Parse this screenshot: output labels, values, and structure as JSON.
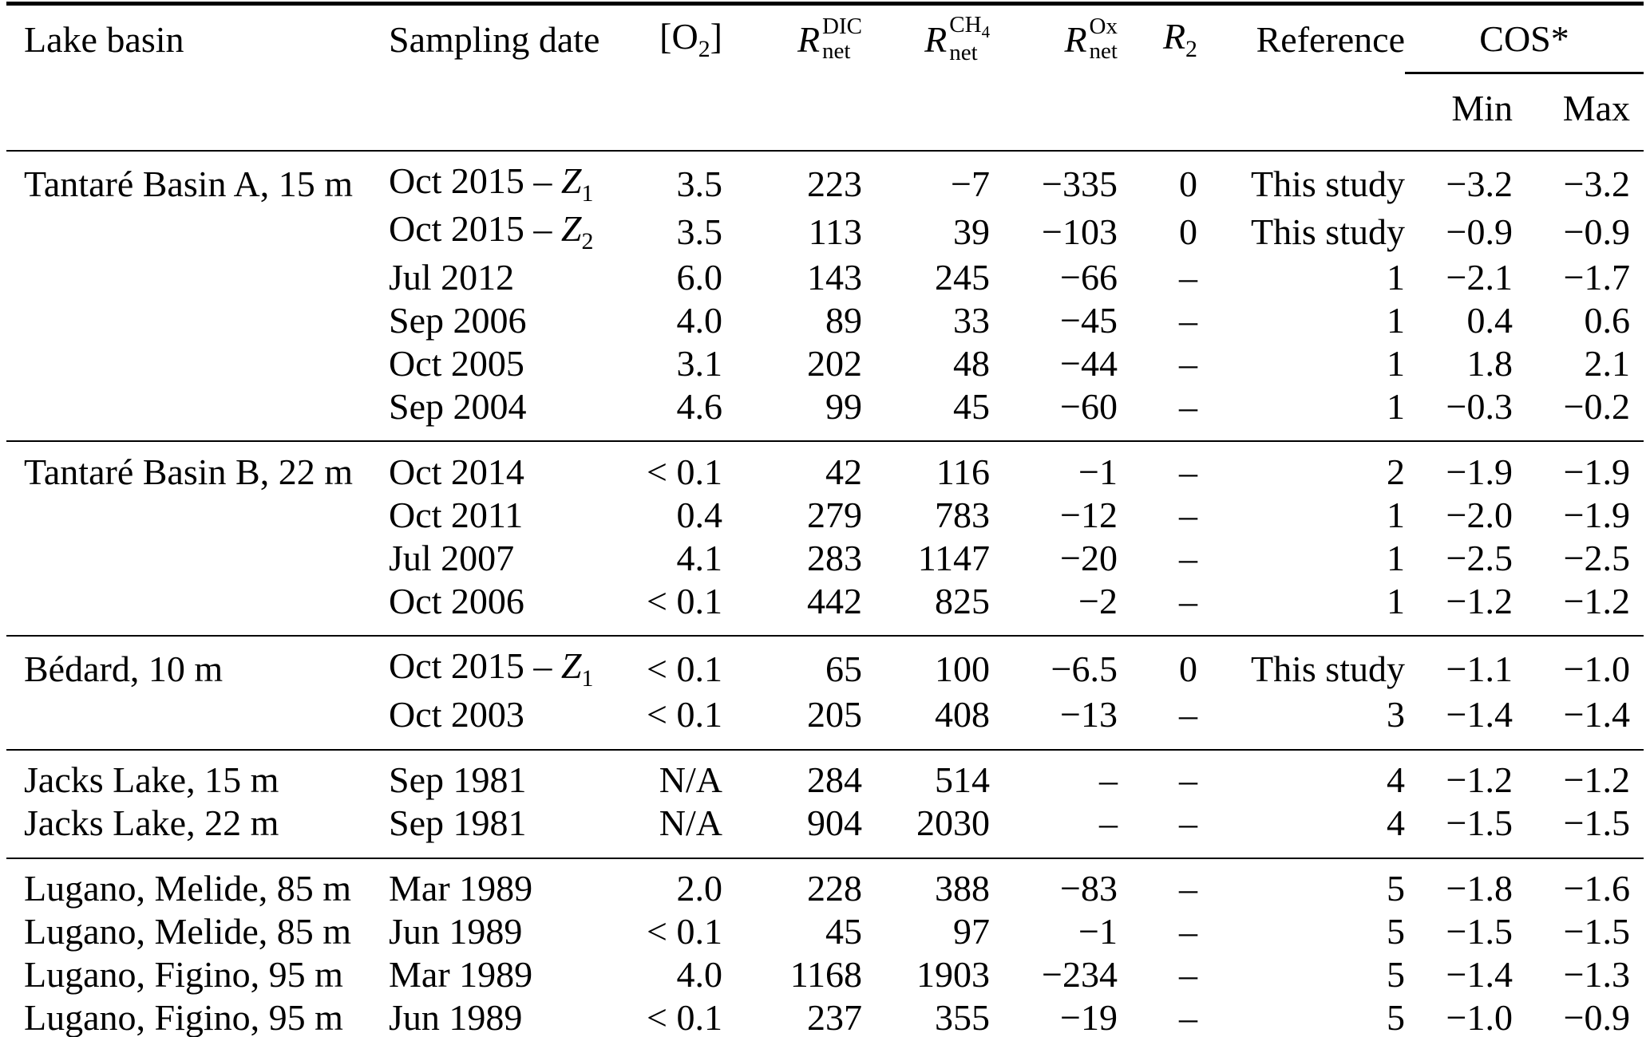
{
  "colors": {
    "text": "#000000",
    "background": "#ffffff",
    "rules": "#000000"
  },
  "table": {
    "headers": {
      "lake_basin": "Lake basin",
      "sampling_date": "Sampling date",
      "o2": {
        "pre": "[O",
        "sub": "2",
        "post": "]"
      },
      "r_dic": {
        "base": "R",
        "sup": "DIC",
        "sub": "net"
      },
      "r_ch4": {
        "base": "R",
        "sup": "CH",
        "sup_sub": "4",
        "sub": "net"
      },
      "r_ox": {
        "base": "R",
        "sup": "Ox",
        "sub": "net"
      },
      "r2": {
        "base": "R",
        "sub": "2"
      },
      "reference": "Reference",
      "cos": "COS*",
      "min": "Min",
      "max": "Max"
    },
    "groups": [
      {
        "rows": [
          {
            "basin": "Tantaré Basin A, 15 m",
            "date": "Oct 2015 – ",
            "date_var": "Z",
            "date_sub": "1",
            "o2": "3.5",
            "dic": "223",
            "ch4": "−7",
            "ox": "−335",
            "r2": "0",
            "ref": "This study",
            "min": "−3.2",
            "max": "−3.2"
          },
          {
            "basin": "",
            "date": "Oct 2015 – ",
            "date_var": "Z",
            "date_sub": "2",
            "o2": "3.5",
            "dic": "113",
            "ch4": "39",
            "ox": "−103",
            "r2": "0",
            "ref": "This study",
            "min": "−0.9",
            "max": "−0.9"
          },
          {
            "basin": "",
            "date": "Jul 2012",
            "date_var": "",
            "date_sub": "",
            "o2": "6.0",
            "dic": "143",
            "ch4": "245",
            "ox": "−66",
            "r2": "–",
            "ref": "1",
            "min": "−2.1",
            "max": "−1.7"
          },
          {
            "basin": "",
            "date": "Sep 2006",
            "date_var": "",
            "date_sub": "",
            "o2": "4.0",
            "dic": "89",
            "ch4": "33",
            "ox": "−45",
            "r2": "–",
            "ref": "1",
            "min": "0.4",
            "max": "0.6"
          },
          {
            "basin": "",
            "date": "Oct 2005",
            "date_var": "",
            "date_sub": "",
            "o2": "3.1",
            "dic": "202",
            "ch4": "48",
            "ox": "−44",
            "r2": "–",
            "ref": "1",
            "min": "1.8",
            "max": "2.1"
          },
          {
            "basin": "",
            "date": "Sep 2004",
            "date_var": "",
            "date_sub": "",
            "o2": "4.6",
            "dic": "99",
            "ch4": "45",
            "ox": "−60",
            "r2": "–",
            "ref": "1",
            "min": "−0.3",
            "max": "−0.2"
          }
        ]
      },
      {
        "rows": [
          {
            "basin": "Tantaré Basin B, 22 m",
            "date": "Oct 2014",
            "date_var": "",
            "date_sub": "",
            "o2": "< 0.1",
            "dic": "42",
            "ch4": "116",
            "ox": "−1",
            "r2": "–",
            "ref": "2",
            "min": "−1.9",
            "max": "−1.9"
          },
          {
            "basin": "",
            "date": "Oct 2011",
            "date_var": "",
            "date_sub": "",
            "o2": "0.4",
            "dic": "279",
            "ch4": "783",
            "ox": "−12",
            "r2": "–",
            "ref": "1",
            "min": "−2.0",
            "max": "−1.9"
          },
          {
            "basin": "",
            "date": "Jul 2007",
            "date_var": "",
            "date_sub": "",
            "o2": "4.1",
            "dic": "283",
            "ch4": "1147",
            "ox": "−20",
            "r2": "–",
            "ref": "1",
            "min": "−2.5",
            "max": "−2.5"
          },
          {
            "basin": "",
            "date": "Oct 2006",
            "date_var": "",
            "date_sub": "",
            "o2": "< 0.1",
            "dic": "442",
            "ch4": "825",
            "ox": "−2",
            "r2": "–",
            "ref": "1",
            "min": "−1.2",
            "max": "−1.2"
          }
        ]
      },
      {
        "rows": [
          {
            "basin": "Bédard, 10 m",
            "date": "Oct 2015 – ",
            "date_var": "Z",
            "date_sub": "1",
            "o2": "< 0.1",
            "dic": "65",
            "ch4": "100",
            "ox": "−6.5",
            "r2": "0",
            "ref": "This study",
            "min": "−1.1",
            "max": "−1.0"
          },
          {
            "basin": "",
            "date": "Oct 2003",
            "date_var": "",
            "date_sub": "",
            "o2": "< 0.1",
            "dic": "205",
            "ch4": "408",
            "ox": "−13",
            "r2": "–",
            "ref": "3",
            "min": "−1.4",
            "max": "−1.4"
          }
        ]
      },
      {
        "rows": [
          {
            "basin": "Jacks Lake, 15 m",
            "date": "Sep 1981",
            "date_var": "",
            "date_sub": "",
            "o2": "N/A",
            "dic": "284",
            "ch4": "514",
            "ox": "–",
            "r2": "–",
            "ref": "4",
            "min": "−1.2",
            "max": "−1.2"
          },
          {
            "basin": "Jacks Lake, 22 m",
            "date": "Sep 1981",
            "date_var": "",
            "date_sub": "",
            "o2": "N/A",
            "dic": "904",
            "ch4": "2030",
            "ox": "–",
            "r2": "–",
            "ref": "4",
            "min": "−1.5",
            "max": "−1.5"
          }
        ]
      },
      {
        "rows": [
          {
            "basin": "Lugano, Melide, 85 m",
            "date": "Mar 1989",
            "date_var": "",
            "date_sub": "",
            "o2": "2.0",
            "dic": "228",
            "ch4": "388",
            "ox": "−83",
            "r2": "–",
            "ref": "5",
            "min": "−1.8",
            "max": "−1.6"
          },
          {
            "basin": "Lugano, Melide, 85 m",
            "date": "Jun 1989",
            "date_var": "",
            "date_sub": "",
            "o2": "< 0.1",
            "dic": "45",
            "ch4": "97",
            "ox": "−1",
            "r2": "–",
            "ref": "5",
            "min": "−1.5",
            "max": "−1.5"
          },
          {
            "basin": "Lugano, Figino, 95 m",
            "date": "Mar 1989",
            "date_var": "",
            "date_sub": "",
            "o2": "4.0",
            "dic": "1168",
            "ch4": "1903",
            "ox": "−234",
            "r2": "–",
            "ref": "5",
            "min": "−1.4",
            "max": "−1.3"
          },
          {
            "basin": "Lugano, Figino, 95 m",
            "date": "Jun 1989",
            "date_var": "",
            "date_sub": "",
            "o2": "< 0.1",
            "dic": "237",
            "ch4": "355",
            "ox": "−19",
            "r2": "–",
            "ref": "5",
            "min": "−1.0",
            "max": "−0.9"
          }
        ]
      }
    ]
  }
}
